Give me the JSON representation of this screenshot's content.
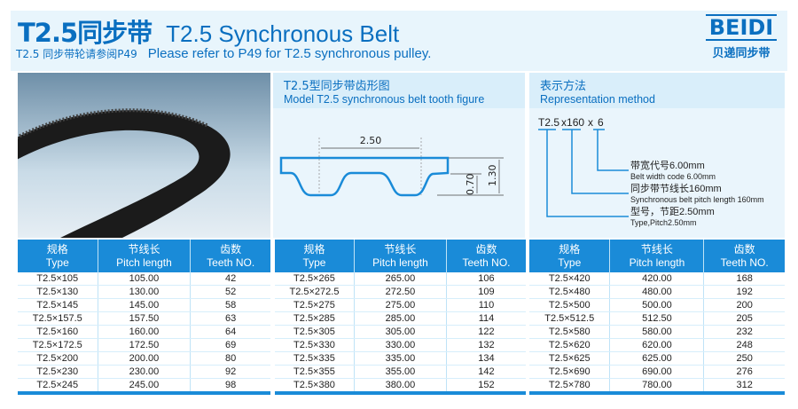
{
  "header": {
    "title_cn": "T2.5同步带",
    "title_en": "T2.5 Synchronous Belt",
    "sub_cn": "T2.5 同步带轮请参阅P49",
    "sub_en": "Please refer to P49 for T2.5 synchronous pulley."
  },
  "logo": {
    "brand": "BEIDI",
    "brand_cn": "贝递同步带"
  },
  "tooth": {
    "title_cn": "T2.5型同步带齿形图",
    "title_en": "Model T2.5 synchronous belt tooth figure",
    "pitch": "2.50",
    "tooth_h": "0.70",
    "total_h": "1.30"
  },
  "rep": {
    "title_cn": "表示方法",
    "title_en": "Representation method",
    "code_a": "T2.5",
    "code_b": "x160",
    "code_c": "x",
    "code_d": "6",
    "l1_cn": "带宽代号6.00mm",
    "l1_en": "Belt width code 6.00mm",
    "l2_cn": "同步带节线长160mm",
    "l2_en": "Synchronous belt pitch length 160mm",
    "l3_cn": "型号，节距2.50mm",
    "l3_en": "Type,Pitch2.50mm"
  },
  "columns": [
    {
      "cn": "规格",
      "en": "Type"
    },
    {
      "cn": "节线长",
      "en": "Pitch length"
    },
    {
      "cn": "齿数",
      "en": "Teeth NO."
    }
  ],
  "tables": [
    [
      [
        "T2.5×105",
        "105.00",
        "42"
      ],
      [
        "T2.5×130",
        "130.00",
        "52"
      ],
      [
        "T2.5×145",
        "145.00",
        "58"
      ],
      [
        "T2.5×157.5",
        "157.50",
        "63"
      ],
      [
        "T2.5×160",
        "160.00",
        "64"
      ],
      [
        "T2.5×172.5",
        "172.50",
        "69"
      ],
      [
        "T2.5×200",
        "200.00",
        "80"
      ],
      [
        "T2.5×230",
        "230.00",
        "92"
      ],
      [
        "T2.5×245",
        "245.00",
        "98"
      ]
    ],
    [
      [
        "T2.5×265",
        "265.00",
        "106"
      ],
      [
        "T2.5×272.5",
        "272.50",
        "109"
      ],
      [
        "T2.5×275",
        "275.00",
        "110"
      ],
      [
        "T2.5×285",
        "285.00",
        "114"
      ],
      [
        "T2.5×305",
        "305.00",
        "122"
      ],
      [
        "T2.5×330",
        "330.00",
        "132"
      ],
      [
        "T2.5×335",
        "335.00",
        "134"
      ],
      [
        "T2.5×355",
        "355.00",
        "142"
      ],
      [
        "T2.5×380",
        "380.00",
        "152"
      ]
    ],
    [
      [
        "T2.5×420",
        "420.00",
        "168"
      ],
      [
        "T2.5×480",
        "480.00",
        "192"
      ],
      [
        "T2.5×500",
        "500.00",
        "200"
      ],
      [
        "T2.5×512.5",
        "512.50",
        "205"
      ],
      [
        "T2.5×580",
        "580.00",
        "232"
      ],
      [
        "T2.5×620",
        "620.00",
        "248"
      ],
      [
        "T2.5×625",
        "625.00",
        "250"
      ],
      [
        "T2.5×690",
        "690.00",
        "276"
      ],
      [
        "T2.5×780",
        "780.00",
        "312"
      ]
    ]
  ],
  "colors": {
    "accent": "#1a8bd8",
    "title": "#0a6fc0",
    "panel": "#eaf5fc"
  }
}
